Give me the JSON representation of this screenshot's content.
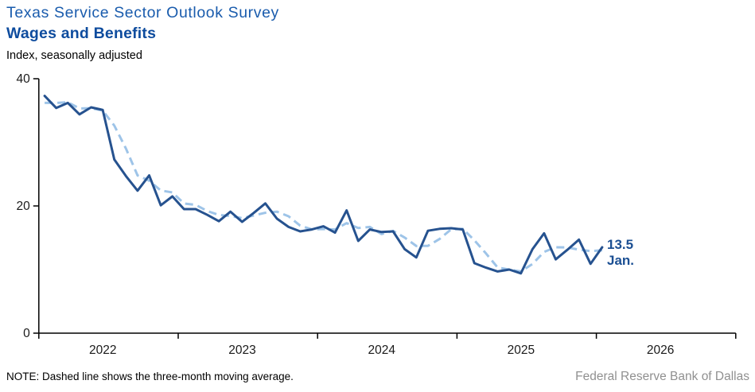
{
  "header": {
    "title": "Texas Service Sector Outlook Survey",
    "subtitle": "Wages and Benefits",
    "axis_note": "Index, seasonally adjusted"
  },
  "annotation": {
    "value": "13.5",
    "month": "Jan."
  },
  "footer": {
    "note": "NOTE: Dashed line shows the three-month  moving average.",
    "source": "Federal Reserve Bank of Dallas"
  },
  "colors": {
    "line": "#26528F",
    "moving_average": "#9EC4E8",
    "title": "#1A5CAD",
    "subtitle": "#0E4C9E",
    "annotation": "#1B4F93",
    "axis": "#000000",
    "tick_label": "#1A1A1A",
    "source": "#909090"
  },
  "chart_data": {
    "type": "line",
    "title": "Texas Service Sector Outlook Survey — Wages and Benefits",
    "ylabel": "Index, seasonally adjusted",
    "xlabel": "",
    "ylim": [
      0,
      40
    ],
    "y_ticks": [
      0,
      20,
      40
    ],
    "x_tick_labels": [
      "2022",
      "2023",
      "2024",
      "2025",
      "2026"
    ],
    "x_start_month": "2022-01",
    "x_end_month": "2026-01",
    "frequency": "monthly",
    "grid": false,
    "legend_position": "none",
    "months": [
      "2022-01",
      "2022-02",
      "2022-03",
      "2022-04",
      "2022-05",
      "2022-06",
      "2022-07",
      "2022-08",
      "2022-09",
      "2022-10",
      "2022-11",
      "2022-12",
      "2023-01",
      "2023-02",
      "2023-03",
      "2023-04",
      "2023-05",
      "2023-06",
      "2023-07",
      "2023-08",
      "2023-09",
      "2023-10",
      "2023-11",
      "2023-12",
      "2024-01",
      "2024-02",
      "2024-03",
      "2024-04",
      "2024-05",
      "2024-06",
      "2024-07",
      "2024-08",
      "2024-09",
      "2024-10",
      "2024-11",
      "2024-12",
      "2025-01",
      "2025-02",
      "2025-03",
      "2025-04",
      "2025-05",
      "2025-06",
      "2025-07",
      "2025-08",
      "2025-09",
      "2025-10",
      "2025-11",
      "2025-12",
      "2026-01"
    ],
    "series": [
      {
        "name": "Wages and benefits index",
        "style": "solid",
        "values": [
          37.3,
          35.4,
          36.2,
          34.4,
          35.5,
          35.1,
          27.3,
          24.7,
          22.4,
          24.8,
          20.1,
          21.5,
          19.5,
          19.5,
          18.6,
          17.6,
          19.1,
          17.5,
          18.9,
          20.4,
          18.0,
          16.7,
          16.0,
          16.3,
          16.8,
          15.8,
          19.3,
          14.5,
          16.3,
          15.9,
          16.0,
          13.2,
          11.9,
          16.1,
          16.4,
          16.5,
          16.3,
          11.0,
          10.3,
          9.7,
          10.0,
          9.4,
          13.2,
          15.7,
          11.6,
          13.1,
          14.7,
          10.9,
          13.5
        ]
      },
      {
        "name": "Three-month moving average",
        "style": "dashed",
        "values": [
          36.2,
          36.2,
          36.3,
          35.33,
          35.37,
          35.0,
          32.63,
          29.03,
          24.8,
          23.97,
          22.43,
          22.13,
          20.37,
          20.17,
          19.2,
          18.57,
          18.43,
          18.07,
          18.5,
          18.93,
          19.1,
          18.37,
          16.9,
          16.33,
          16.37,
          16.3,
          17.3,
          16.53,
          16.7,
          15.57,
          16.07,
          15.03,
          13.7,
          13.73,
          14.8,
          16.33,
          16.4,
          14.6,
          12.53,
          10.33,
          10.0,
          9.7,
          10.87,
          12.77,
          13.5,
          13.47,
          13.13,
          12.9,
          13.03
        ]
      }
    ],
    "latest": {
      "month": "Jan.",
      "value": 13.5
    }
  }
}
